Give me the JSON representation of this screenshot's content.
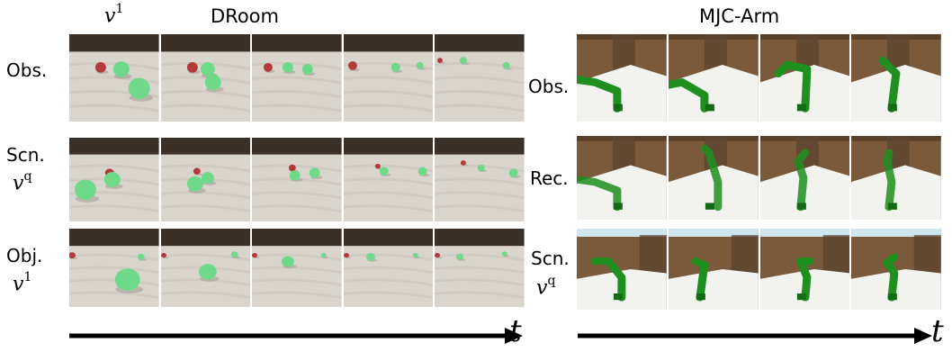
{
  "left": {
    "title": "DRoom",
    "header_math": {
      "base": "v",
      "sup": "1"
    },
    "rows": [
      {
        "label": "Obs.",
        "math": null
      },
      {
        "label": "Scn.",
        "math": {
          "base": "v",
          "sup": "q"
        }
      },
      {
        "label": "Obj.",
        "math": {
          "base": "v",
          "sup": "1"
        }
      }
    ],
    "frames_per_row": 5
  },
  "right": {
    "title": "MJC-Arm",
    "rows": [
      {
        "label": "Obs.",
        "math": null
      },
      {
        "label": "Rec.",
        "math": null
      },
      {
        "label": "Scn.",
        "math": {
          "base": "v",
          "sup": "q"
        }
      }
    ],
    "frames_per_row": 4
  },
  "time_axis_label": "t",
  "colors": {
    "ball_green": "#6fd98a",
    "ball_red": "#b23a3a",
    "arm_green": "#1f8f1f",
    "floor": "#d9d4cc",
    "wall_dark": "#3a3028",
    "wall_brown": "#7a5a3a",
    "snow": "#f2f2ee"
  }
}
